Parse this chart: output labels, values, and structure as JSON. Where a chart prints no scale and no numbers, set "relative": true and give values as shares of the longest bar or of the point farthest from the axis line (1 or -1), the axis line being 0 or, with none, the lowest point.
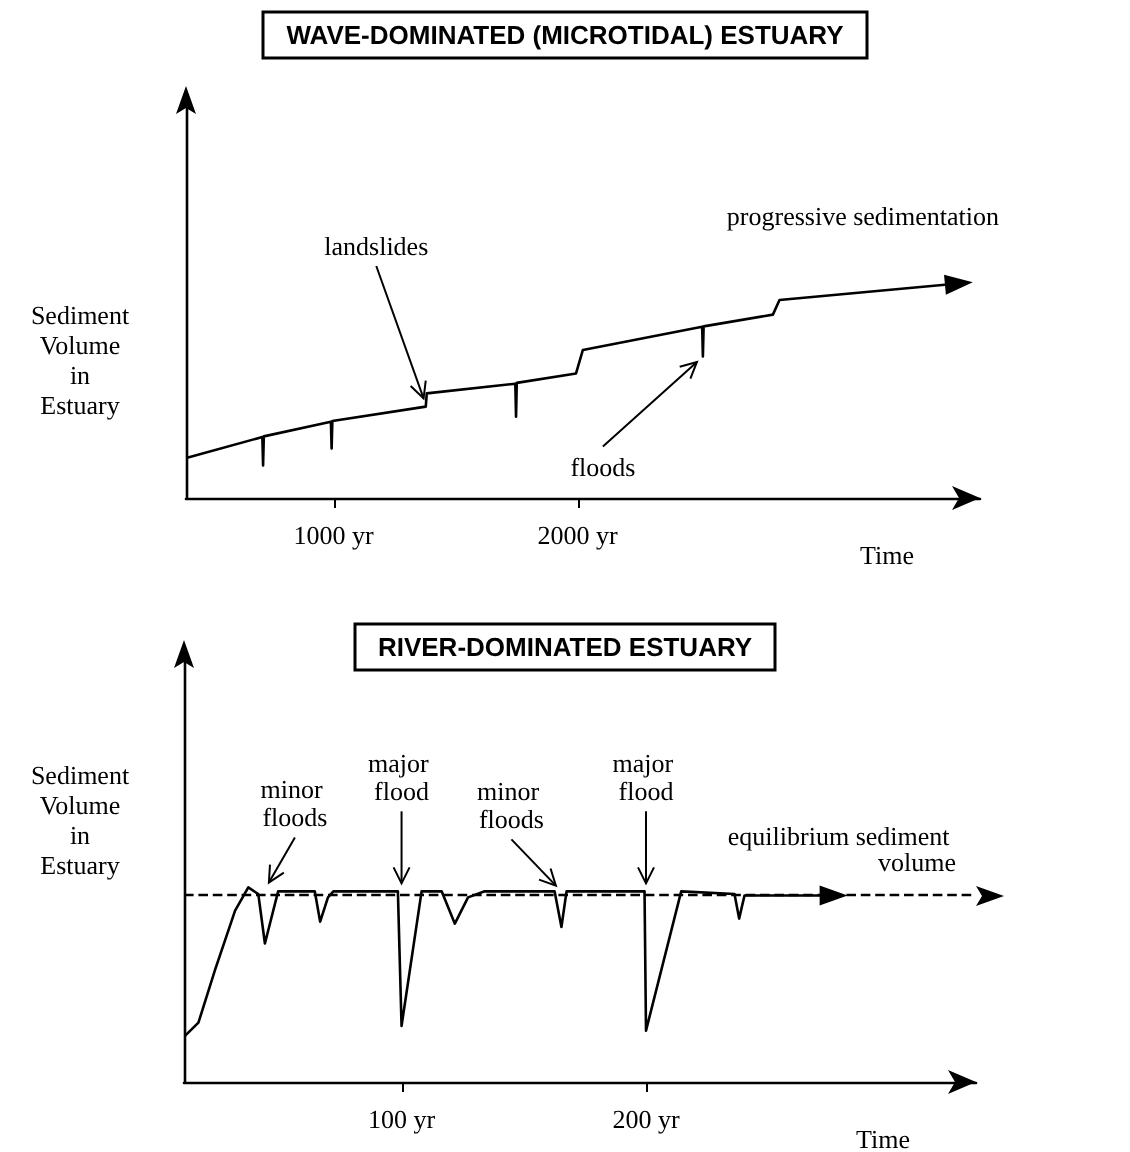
{
  "chart_data": [
    {
      "type": "line",
      "title": "WAVE-DOMINATED (MICROTIDAL) ESTUARY",
      "xlabel": "Time",
      "ylabel": "Sediment Volume in Estuary",
      "relative": true,
      "xlim": [
        395,
        3650
      ],
      "xticks": [
        {
          "value": 1000,
          "label": "1000 yr"
        },
        {
          "value": 2000,
          "label": "2000 yr"
        }
      ],
      "x": [
        396,
        708,
        711,
        714,
        989,
        992,
        995,
        1378,
        1382,
        1745,
        1748,
        1751,
        1994,
        2022,
        2511,
        2514,
        2517,
        2801,
        2828,
        3539
      ],
      "values": [
        0.187,
        0.285,
        0.152,
        0.288,
        0.356,
        0.231,
        0.36,
        0.427,
        0.489,
        0.534,
        0.38,
        0.538,
        0.582,
        0.692,
        0.8,
        0.661,
        0.802,
        0.857,
        0.925,
        1.0
      ],
      "annotations": [
        {
          "text": "landslides",
          "x": 1380,
          "y": 0.43
        },
        {
          "text": "floods",
          "x": 2514,
          "y": 0.661
        },
        {
          "text": "progressive sedimentation",
          "x": 3539,
          "y": 1.0
        }
      ]
    },
    {
      "type": "line",
      "title": "RIVER-DOMINATED ESTUARY",
      "xlabel": "Time",
      "ylabel": "Sediment Volume in Estuary",
      "relative": true,
      "xlim": [
        11,
        335
      ],
      "xticks": [
        {
          "value": 100,
          "label": "100 yr"
        },
        {
          "value": 200,
          "label": "200 yr"
        }
      ],
      "x": [
        11.4,
        16.9,
        23.7,
        31.9,
        37.3,
        41.4,
        44.1,
        49.5,
        64.5,
        66.7,
        69.9,
        72.1,
        98.5,
        100,
        108.2,
        116.4,
        121.8,
        127.2,
        134,
        162.6,
        165.4,
        167.5,
        199.4,
        200,
        214.4,
        236.2,
        238.1,
        240.3,
        274.3
      ],
      "values": [
        0.237,
        0.305,
        0.576,
        0.881,
        1.0,
        0.966,
        0.712,
        0.98,
        0.98,
        0.824,
        0.949,
        0.98,
        0.98,
        0.288,
        0.98,
        0.98,
        0.814,
        0.949,
        0.98,
        0.98,
        0.797,
        0.98,
        0.98,
        0.264,
        0.98,
        0.966,
        0.84,
        0.959,
        0.959
      ],
      "ref_lines": [
        {
          "axis": "y",
          "value": 0.959,
          "label": "equilibrium sediment volume",
          "line_style": "dashed"
        }
      ],
      "annotations": [
        {
          "text": "minor floods",
          "x": 44.1,
          "y": 0.99
        },
        {
          "text": "major flood",
          "x": 100,
          "y": 0.98
        },
        {
          "text": "minor floods",
          "x": 165.4,
          "y": 0.98
        },
        {
          "text": "major flood",
          "x": 200,
          "y": 0.98
        }
      ]
    }
  ]
}
